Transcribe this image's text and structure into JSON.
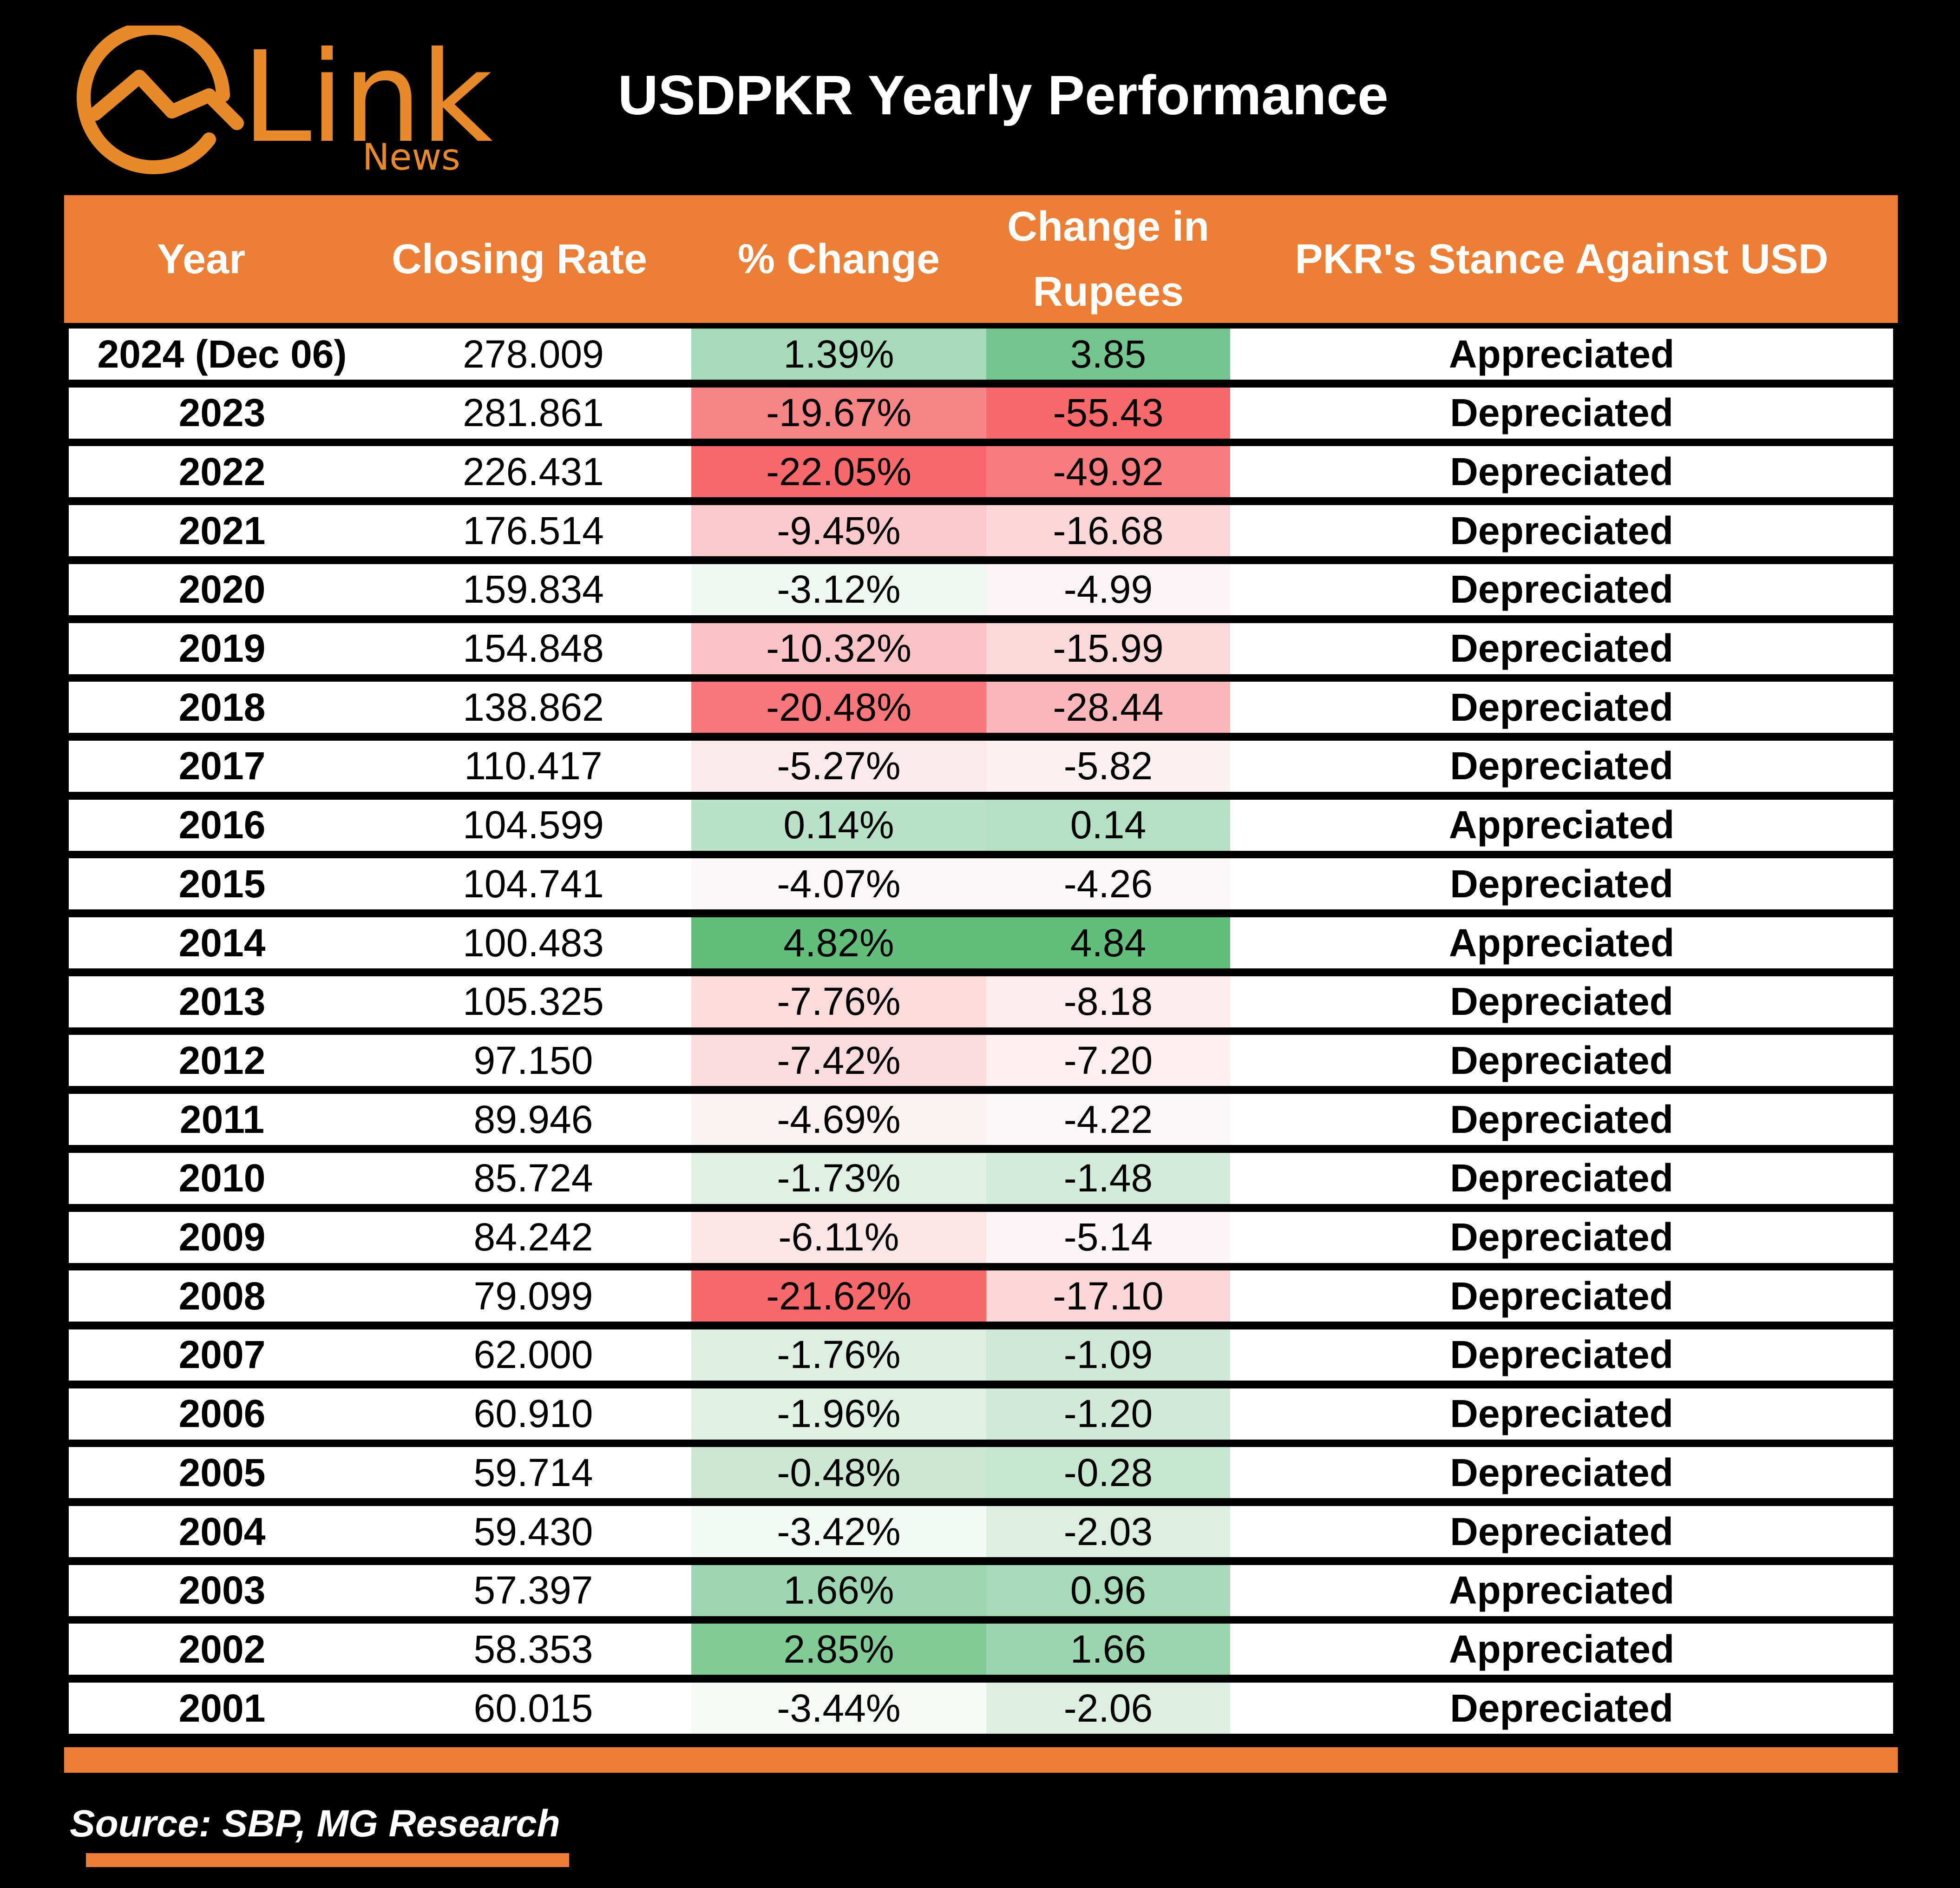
{
  "header": {
    "logo_word": "Link",
    "logo_sub": "News",
    "title": "USDPKR Yearly Performance"
  },
  "chart_data": {
    "type": "table",
    "title": "USDPKR Yearly Performance",
    "columns": [
      "Year",
      "Closing Rate",
      "% Change",
      "Change in Rupees",
      "PKR's Stance Against USD"
    ],
    "column_header_lines": {
      "year": "Year",
      "rate": "Closing Rate",
      "pct": "% Change",
      "rupees_line1": "Change in",
      "rupees_line2": "Rupees",
      "stance": "PKR's Stance Against USD"
    },
    "rows": [
      {
        "year": "2024 (Dec 06)",
        "rate": "278.009",
        "pct": "1.39%",
        "rupees": "3.85",
        "stance": "Appreciated",
        "pct_color": "#a7dab9",
        "rup_color": "#73c48f"
      },
      {
        "year": "2023",
        "rate": "281.861",
        "pct": "-19.67%",
        "rupees": "-55.43",
        "stance": "Depreciated",
        "pct_color": "#f78487",
        "rup_color": "#f8696b"
      },
      {
        "year": "2022",
        "rate": "226.431",
        "pct": "-22.05%",
        "rupees": "-49.92",
        "stance": "Depreciated",
        "pct_color": "#f8696b",
        "rup_color": "#f87b7e"
      },
      {
        "year": "2021",
        "rate": "176.514",
        "pct": "-9.45%",
        "rupees": "-16.68",
        "stance": "Depreciated",
        "pct_color": "#fbc9cb",
        "rup_color": "#fbd7d9"
      },
      {
        "year": "2020",
        "rate": "159.834",
        "pct": "-3.12%",
        "rupees": "-4.99",
        "stance": "Depreciated",
        "pct_color": "#f1f8f3",
        "rup_color": "#fbf4f6"
      },
      {
        "year": "2019",
        "rate": "154.848",
        "pct": "-10.32%",
        "rupees": "-15.99",
        "stance": "Depreciated",
        "pct_color": "#fbc3c5",
        "rup_color": "#fbd9db"
      },
      {
        "year": "2018",
        "rate": "138.862",
        "pct": "-20.48%",
        "rupees": "-28.44",
        "stance": "Depreciated",
        "pct_color": "#f8777a",
        "rup_color": "#f9b7b9"
      },
      {
        "year": "2017",
        "rate": "110.417",
        "pct": "-5.27%",
        "rupees": "-5.82",
        "stance": "Depreciated",
        "pct_color": "#fbeaec",
        "rup_color": "#fbf1f3"
      },
      {
        "year": "2016",
        "rate": "104.599",
        "pct": "0.14%",
        "rupees": "0.14",
        "stance": "Appreciated",
        "pct_color": "#b9e1c7",
        "rup_color": "#b3dfc2"
      },
      {
        "year": "2015",
        "rate": "104.741",
        "pct": "-4.07%",
        "rupees": "-4.26",
        "stance": "Depreciated",
        "pct_color": "#fbf6f8",
        "rup_color": "#fbf7f9"
      },
      {
        "year": "2014",
        "rate": "100.483",
        "pct": "4.82%",
        "rupees": "4.84",
        "stance": "Appreciated",
        "pct_color": "#63be7b",
        "rup_color": "#63be7b"
      },
      {
        "year": "2013",
        "rate": "105.325",
        "pct": "-7.76%",
        "rupees": "-8.18",
        "stance": "Depreciated",
        "pct_color": "#fbdadc",
        "rup_color": "#fbebed"
      },
      {
        "year": "2012",
        "rate": "97.150",
        "pct": "-7.42%",
        "rupees": "-7.20",
        "stance": "Depreciated",
        "pct_color": "#fbdcde",
        "rup_color": "#fbeff1"
      },
      {
        "year": "2011",
        "rate": "89.946",
        "pct": "-4.69%",
        "rupees": "-4.22",
        "stance": "Depreciated",
        "pct_color": "#fbf2f4",
        "rup_color": "#fbf7f9"
      },
      {
        "year": "2010",
        "rate": "85.724",
        "pct": "-1.73%",
        "rupees": "-1.48",
        "stance": "Depreciated",
        "pct_color": "#dff0e4",
        "rup_color": "#d3ebdb"
      },
      {
        "year": "2009",
        "rate": "84.242",
        "pct": "-6.11%",
        "rupees": "-5.14",
        "stance": "Depreciated",
        "pct_color": "#fbe5e7",
        "rup_color": "#fbf5f7"
      },
      {
        "year": "2008",
        "rate": "79.099",
        "pct": "-21.62%",
        "rupees": "-17.10",
        "stance": "Depreciated",
        "pct_color": "#f8696b",
        "rup_color": "#fbd6d8"
      },
      {
        "year": "2007",
        "rate": "62.000",
        "pct": "-1.76%",
        "rupees": "-1.09",
        "stance": "Depreciated",
        "pct_color": "#dcefe2",
        "rup_color": "#cfe9d8"
      },
      {
        "year": "2006",
        "rate": "60.910",
        "pct": "-1.96%",
        "rupees": "-1.20",
        "stance": "Depreciated",
        "pct_color": "#dff0e4",
        "rup_color": "#d0e9d8"
      },
      {
        "year": "2005",
        "rate": "59.714",
        "pct": "-0.48%",
        "rupees": "-0.28",
        "stance": "Depreciated",
        "pct_color": "#cce8d5",
        "rup_color": "#c6e6d1"
      },
      {
        "year": "2004",
        "rate": "59.430",
        "pct": "-3.42%",
        "rupees": "-2.03",
        "stance": "Depreciated",
        "pct_color": "#f3f9f5",
        "rup_color": "#dbeee1"
      },
      {
        "year": "2003",
        "rate": "57.397",
        "pct": "1.66%",
        "rupees": "0.96",
        "stance": "Appreciated",
        "pct_color": "#9dd6b0",
        "rup_color": "#a5d9b7"
      },
      {
        "year": "2002",
        "rate": "58.353",
        "pct": "2.85%",
        "rupees": "1.66",
        "stance": "Appreciated",
        "pct_color": "#82cb97",
        "rup_color": "#9ad5ad"
      },
      {
        "year": "2001",
        "rate": "60.015",
        "pct": "-3.44%",
        "rupees": "-2.06",
        "stance": "Depreciated",
        "pct_color": "#f5faf7",
        "rup_color": "#dcefe2"
      }
    ]
  },
  "footer": {
    "source": "Source: SBP, MG Research"
  },
  "colors": {
    "accent": "#ec7f35",
    "logo": "#e98a2a",
    "background": "#000000"
  }
}
